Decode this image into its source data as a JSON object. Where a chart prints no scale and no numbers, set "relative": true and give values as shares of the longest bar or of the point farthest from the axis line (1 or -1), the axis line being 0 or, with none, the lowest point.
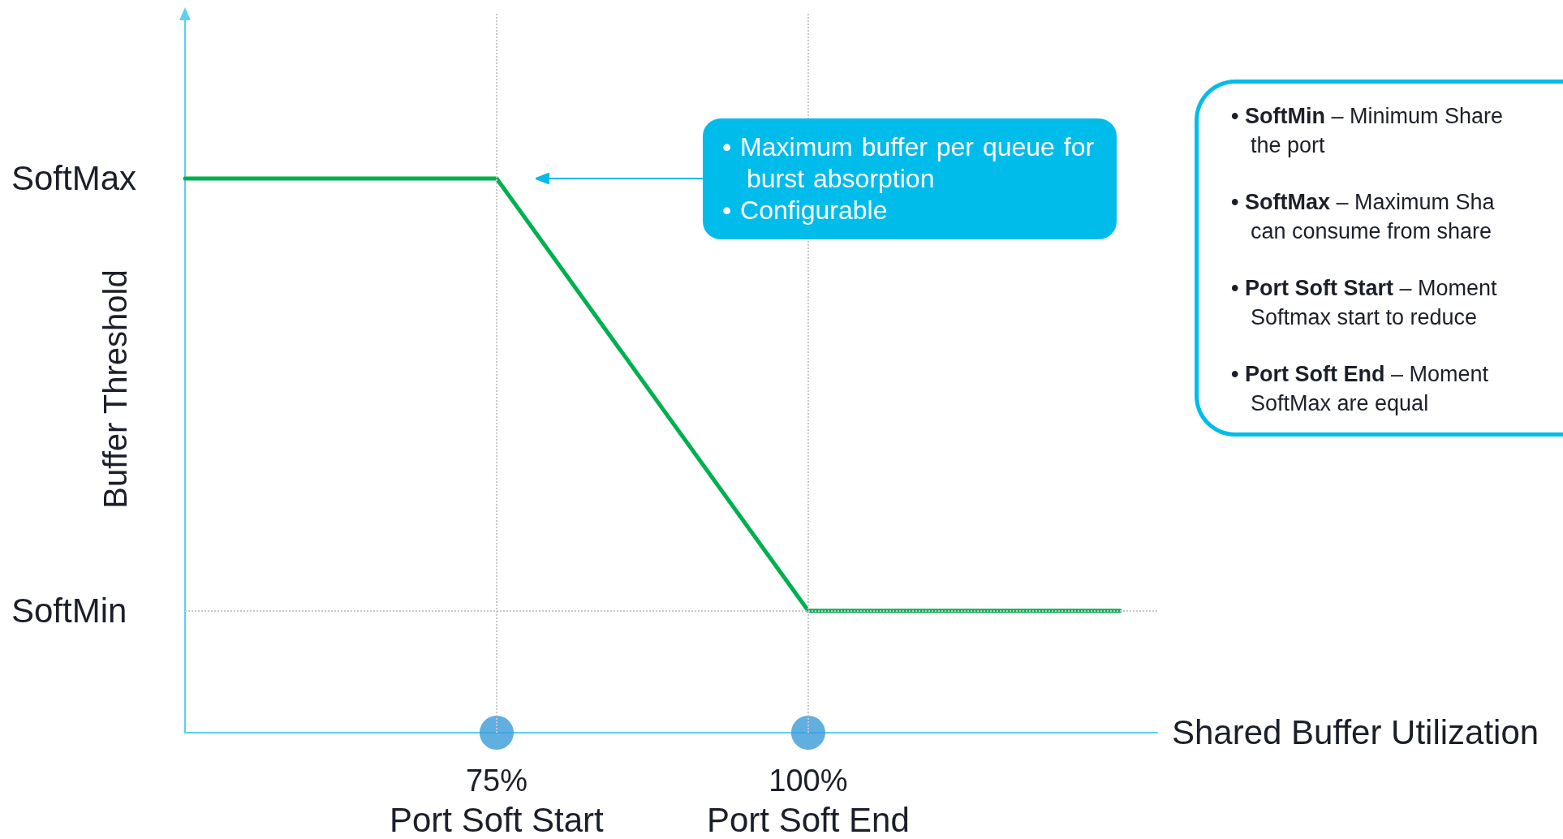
{
  "chart_data": {
    "type": "line",
    "xlabel": "Shared Buffer Utilization",
    "ylabel": "Buffer Threshold",
    "relative": true,
    "tick_labels": "x",
    "xlim": [
      50,
      128
    ],
    "xticks": [
      {
        "value": 75,
        "label": "75%"
      },
      {
        "value": 100,
        "label": "100%"
      }
    ],
    "series": [
      {
        "color": "#00b04f",
        "x": [
          50,
          75,
          100,
          125
        ],
        "values": [
          1,
          1,
          0.22,
          0.22
        ],
        "marker": "none",
        "line_style": "solid"
      },
      {
        "type": "scatter",
        "color": "#3a9ad9",
        "x": [
          75,
          100
        ],
        "values": [
          0,
          0
        ],
        "marker": "circle"
      }
    ],
    "ref_lines": [
      {
        "axis": "y",
        "value": 0.22,
        "color": "#c8c8c8",
        "line_style": "dotted"
      },
      {
        "axis": "x",
        "value": 75,
        "color": "#c8c8c8",
        "line_style": "dotted"
      },
      {
        "axis": "x",
        "value": 100,
        "color": "#c8c8c8",
        "line_style": "dotted"
      }
    ],
    "annotations": [
      {
        "text": "SoftMax",
        "x": 50,
        "y": 1
      },
      {
        "text": "SoftMin",
        "x": 50,
        "y": 0.22
      },
      {
        "text": "Port Soft Start",
        "x": 75,
        "y": 0
      },
      {
        "text": "Port Soft End",
        "x": 100,
        "y": 0
      },
      "• Maximum buffer per queue for\nburst absorption\n• Configurable",
      "• SoftMin – Minimum Share\nthe port",
      "• SoftMax – Maximum Sha\ncan consume from share",
      "• Port Soft Start – Moment\nSoftmax start to reduce",
      "• Port Soft End – Moment\nSoftMax are equal"
    ]
  }
}
